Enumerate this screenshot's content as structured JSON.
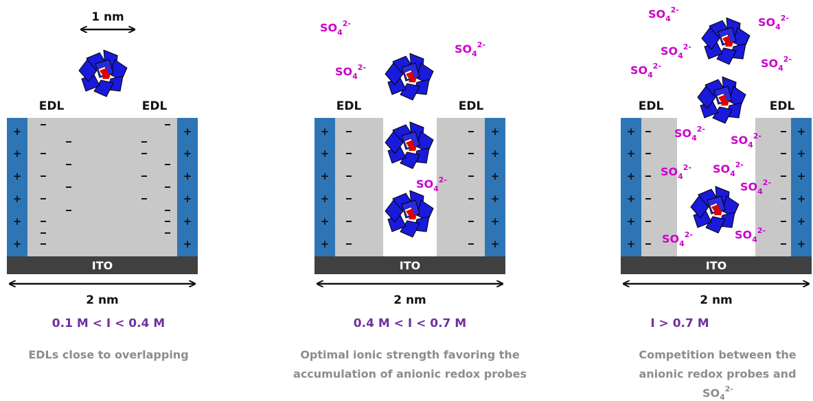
{
  "ion": {
    "base": "SO",
    "sub": "4",
    "sup": "2-"
  },
  "colors": {
    "electrode": "#2e75b6",
    "edl": "#c8c8c8",
    "ito": "#404040",
    "ion": "#cc00cc",
    "range": "#7030a0",
    "caption": "#8c8c8c",
    "probe_outer": "#1a1adb",
    "probe_core": "#e00000"
  },
  "panels": [
    {
      "edl_left": "EDL",
      "edl_right": "EDL",
      "top_dimension": "1 nm",
      "ito": "ITO",
      "width_label": "2 nm",
      "range": "0.1 M < I < 0.4 M",
      "caption_lines": [
        "EDLs close to overlapping"
      ],
      "left_signs": [
        "+",
        "+",
        "+",
        "+",
        "+",
        "+"
      ],
      "right_signs": [
        "+",
        "+",
        "+",
        "+",
        "+",
        "+"
      ]
    },
    {
      "edl_left": "EDL",
      "edl_right": "EDL",
      "ito": "ITO",
      "width_label": "2 nm",
      "range": "0.4 M < I < 0.7 M",
      "caption_lines": [
        "Optimal ionic strength favoring the",
        "accumulation of anionic redox probes"
      ],
      "left_signs": [
        "+",
        "+",
        "+",
        "+",
        "+",
        "+"
      ],
      "right_signs": [
        "+",
        "+",
        "+",
        "+",
        "+",
        "+"
      ]
    },
    {
      "edl_left": "EDL",
      "edl_right": "EDL",
      "ito": "ITO",
      "width_label": "2 nm",
      "range": "I > 0.7 M",
      "caption_lines": [
        "Competition between the",
        "anionic redox probes and"
      ],
      "caption_ion": true,
      "left_signs": [
        "+",
        "+",
        "+",
        "+",
        "+",
        "+"
      ],
      "right_signs": [
        "+",
        "+",
        "+",
        "+",
        "+",
        "+"
      ]
    }
  ]
}
